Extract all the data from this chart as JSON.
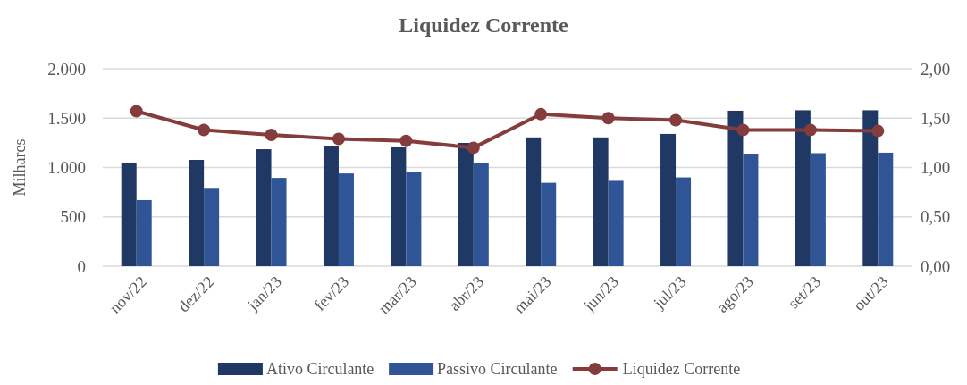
{
  "chart_data": {
    "type": "bar",
    "title": "Liquidez Corrente",
    "ylabel": "Milhares",
    "categories": [
      "nov/22",
      "dez/22",
      "jan/23",
      "fev/23",
      "mar/23",
      "abr/23",
      "mai/23",
      "jun/23",
      "jul/23",
      "ago/23",
      "set/23",
      "out/23"
    ],
    "series": [
      {
        "name": "Ativo Circulante",
        "color": "#203864",
        "values": [
          1050,
          1077,
          1185,
          1213,
          1204,
          1249,
          1305,
          1305,
          1340,
          1575,
          1580,
          1580
        ]
      },
      {
        "name": "Passivo Circulante",
        "color": "#2f5597",
        "values": [
          670,
          785,
          895,
          940,
          950,
          1045,
          845,
          865,
          900,
          1140,
          1145,
          1150
        ]
      },
      {
        "name": "Liquidez Corrente",
        "type": "line",
        "axis": "y2",
        "color": "#843c3c",
        "marker": "circle",
        "values": [
          1.57,
          1.38,
          1.33,
          1.29,
          1.27,
          1.2,
          1.54,
          1.5,
          1.48,
          1.38,
          1.38,
          1.37
        ]
      }
    ],
    "ylim": [
      0,
      2000
    ],
    "yticks": [
      {
        "value": 0,
        "label": "0"
      },
      {
        "value": 500,
        "label": "500"
      },
      {
        "value": 1000,
        "label": "1.000"
      },
      {
        "value": 1500,
        "label": "1.500"
      },
      {
        "value": 2000,
        "label": "2.000"
      }
    ],
    "y2lim": [
      0,
      2
    ],
    "y2ticks": [
      {
        "value": 0,
        "label": "0,00"
      },
      {
        "value": 0.5,
        "label": "0,50"
      },
      {
        "value": 1,
        "label": "1,00"
      },
      {
        "value": 1.5,
        "label": "1,50"
      },
      {
        "value": 2,
        "label": "2,00"
      }
    ],
    "grid": "y",
    "legend": "bottom"
  }
}
